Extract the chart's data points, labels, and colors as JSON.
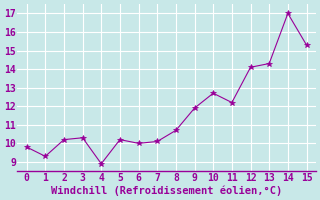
{
  "x": [
    0,
    1,
    2,
    3,
    4,
    5,
    6,
    7,
    8,
    9,
    10,
    11,
    12,
    13,
    14,
    15
  ],
  "y": [
    9.8,
    9.3,
    10.2,
    10.3,
    8.9,
    10.2,
    10.0,
    10.1,
    10.7,
    11.9,
    12.7,
    12.2,
    14.1,
    14.3,
    17.0,
    15.3
  ],
  "xlim": [
    -0.5,
    15.5
  ],
  "ylim": [
    8.5,
    17.5
  ],
  "yticks": [
    9,
    10,
    11,
    12,
    13,
    14,
    15,
    16,
    17
  ],
  "xticks": [
    0,
    1,
    2,
    3,
    4,
    5,
    6,
    7,
    8,
    9,
    10,
    11,
    12,
    13,
    14,
    15
  ],
  "xlabel": "Windchill (Refroidissement éolien,°C)",
  "line_color": "#990099",
  "marker": "*",
  "marker_size": 4,
  "bg_color": "#c8e8e8",
  "grid_color": "#ffffff",
  "label_color": "#990099",
  "tick_color": "#990099",
  "xlabel_fontsize": 7.5,
  "tick_fontsize": 7
}
